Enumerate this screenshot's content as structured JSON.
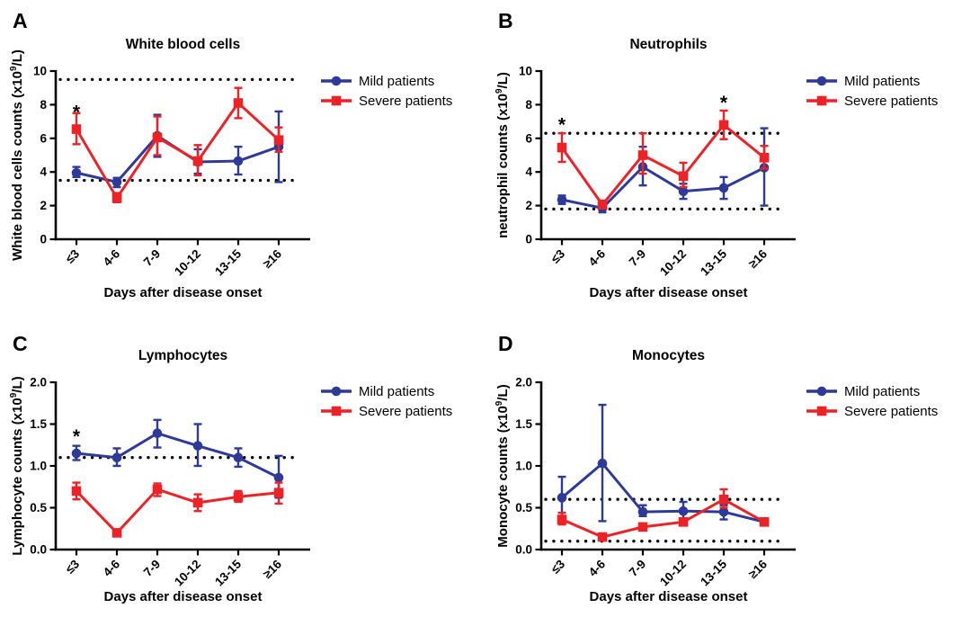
{
  "figure": {
    "colors": {
      "mild": "#2E3A97",
      "severe": "#EC2227",
      "axis": "#000000",
      "dotted": "#000000",
      "asterisk": "#000000",
      "background": "#FFFFFF"
    },
    "legend": [
      {
        "key": "mild",
        "label": "Mild patients",
        "marker": "circle"
      },
      {
        "key": "severe",
        "label": "Severe patients",
        "marker": "square"
      }
    ]
  },
  "chart_data": [
    {
      "type": "line",
      "panel_label": "A",
      "title": "White blood cells",
      "ylabel_prefix": "White blood cells counts (x10",
      "ylabel_sup": "9",
      "ylabel_suffix": "/L)",
      "xlabel": "Days after disease onset",
      "categories": [
        "≤3",
        "4-6",
        "7-9",
        "10-12",
        "13-15",
        "≥16"
      ],
      "ylim": [
        0,
        10
      ],
      "yticks": [
        0,
        2,
        4,
        6,
        8,
        10
      ],
      "ytick_labels": [
        "0",
        "2",
        "4",
        "6",
        "8",
        "10"
      ],
      "reference_lines": [
        9.5,
        3.5
      ],
      "significance": [
        {
          "category_index": 0,
          "y": 7.2,
          "symbol": "*"
        }
      ],
      "series": [
        {
          "name": "Mild patients",
          "color_key": "mild",
          "marker": "circle",
          "values": [
            3.95,
            3.4,
            6.15,
            4.6,
            4.65,
            5.5
          ],
          "err_low": [
            3.7,
            3.1,
            4.9,
            3.9,
            3.85,
            3.4
          ],
          "err_high": [
            4.3,
            3.65,
            7.4,
            5.35,
            5.5,
            7.6
          ]
        },
        {
          "name": "Severe patients",
          "color_key": "severe",
          "marker": "square",
          "values": [
            6.55,
            2.45,
            6.05,
            4.65,
            8.1,
            5.9
          ],
          "err_low": [
            5.65,
            2.2,
            5.0,
            3.8,
            7.2,
            5.2
          ],
          "err_high": [
            7.5,
            2.75,
            7.3,
            5.6,
            9.0,
            6.65
          ]
        }
      ]
    },
    {
      "type": "line",
      "panel_label": "B",
      "title": "Neutrophils",
      "ylabel_prefix": "neutrophil counts (x10",
      "ylabel_sup": "9",
      "ylabel_suffix": "/L)",
      "xlabel": "Days after disease onset",
      "categories": [
        "≤3",
        "4-6",
        "7-9",
        "10-12",
        "13-15",
        "≥16"
      ],
      "ylim": [
        0,
        10
      ],
      "yticks": [
        0,
        2,
        4,
        6,
        8,
        10
      ],
      "ytick_labels": [
        "0",
        "2",
        "4",
        "6",
        "8",
        "10"
      ],
      "reference_lines": [
        6.3,
        1.8
      ],
      "significance": [
        {
          "category_index": 0,
          "y": 6.45,
          "symbol": "*"
        },
        {
          "category_index": 4,
          "y": 7.75,
          "symbol": "*"
        }
      ],
      "series": [
        {
          "name": "Mild patients",
          "color_key": "mild",
          "marker": "circle",
          "values": [
            2.35,
            1.85,
            4.3,
            2.85,
            3.05,
            4.25
          ],
          "err_low": [
            2.1,
            1.6,
            3.2,
            2.4,
            2.4,
            2.0
          ],
          "err_high": [
            2.6,
            2.1,
            5.5,
            3.3,
            3.7,
            6.6
          ]
        },
        {
          "name": "Severe patients",
          "color_key": "severe",
          "marker": "square",
          "values": [
            5.45,
            2.05,
            5.0,
            3.75,
            6.8,
            4.85
          ],
          "err_low": [
            4.6,
            1.9,
            3.9,
            3.1,
            5.95,
            4.2
          ],
          "err_high": [
            6.3,
            2.3,
            6.3,
            4.55,
            7.65,
            5.55
          ]
        }
      ]
    },
    {
      "type": "line",
      "panel_label": "C",
      "title": "Lymphocytes",
      "ylabel_prefix": "Lymphocyte counts (x10",
      "ylabel_sup": "9",
      "ylabel_suffix": "/L)",
      "xlabel": "Days after disease onset",
      "categories": [
        "≤3",
        "4-6",
        "7-9",
        "10-12",
        "13-15",
        "≥16"
      ],
      "ylim": [
        0,
        2
      ],
      "yticks": [
        0,
        0.5,
        1,
        1.5,
        2
      ],
      "ytick_labels": [
        "0.0",
        "0.5",
        "1.0",
        "1.5",
        "2.0"
      ],
      "reference_lines": [
        1.1
      ],
      "significance": [
        {
          "category_index": 0,
          "y": 1.28,
          "symbol": "*"
        }
      ],
      "series": [
        {
          "name": "Mild patients",
          "color_key": "mild",
          "marker": "circle",
          "values": [
            1.15,
            1.1,
            1.39,
            1.24,
            1.1,
            0.86
          ],
          "err_low": [
            1.07,
            1.0,
            1.22,
            1.0,
            0.99,
            0.62
          ],
          "err_high": [
            1.24,
            1.21,
            1.55,
            1.5,
            1.21,
            1.12
          ]
        },
        {
          "name": "Severe patients",
          "color_key": "severe",
          "marker": "square",
          "values": [
            0.7,
            0.2,
            0.72,
            0.56,
            0.63,
            0.68
          ],
          "err_low": [
            0.6,
            0.2,
            0.64,
            0.46,
            0.57,
            0.55
          ],
          "err_high": [
            0.8,
            0.2,
            0.79,
            0.66,
            0.7,
            0.8
          ]
        }
      ]
    },
    {
      "type": "line",
      "panel_label": "D",
      "title": "Monocytes",
      "ylabel_prefix": "Monocyte counts (x10",
      "ylabel_sup": "9",
      "ylabel_suffix": "/L)",
      "xlabel": "Days after disease onset",
      "categories": [
        "≤3",
        "4-6",
        "7-9",
        "10-12",
        "13-15",
        "≥16"
      ],
      "ylim": [
        0,
        2
      ],
      "yticks": [
        0,
        0.5,
        1,
        1.5,
        2
      ],
      "ytick_labels": [
        "0.0",
        "0.5",
        "1.0",
        "1.5",
        "2.0"
      ],
      "reference_lines": [
        0.6,
        0.1
      ],
      "significance": [],
      "series": [
        {
          "name": "Mild patients",
          "color_key": "mild",
          "marker": "circle",
          "values": [
            0.62,
            1.03,
            0.45,
            0.46,
            0.45,
            0.33
          ],
          "err_low": [
            0.36,
            0.34,
            0.4,
            0.37,
            0.36,
            0.33
          ],
          "err_high": [
            0.87,
            1.73,
            0.53,
            0.57,
            0.53,
            0.33
          ]
        },
        {
          "name": "Severe patients",
          "color_key": "severe",
          "marker": "square",
          "values": [
            0.36,
            0.15,
            0.27,
            0.33,
            0.6,
            0.33
          ],
          "err_low": [
            0.3,
            0.15,
            0.23,
            0.3,
            0.5,
            0.29
          ],
          "err_high": [
            0.44,
            0.15,
            0.31,
            0.37,
            0.72,
            0.37
          ]
        }
      ]
    }
  ]
}
